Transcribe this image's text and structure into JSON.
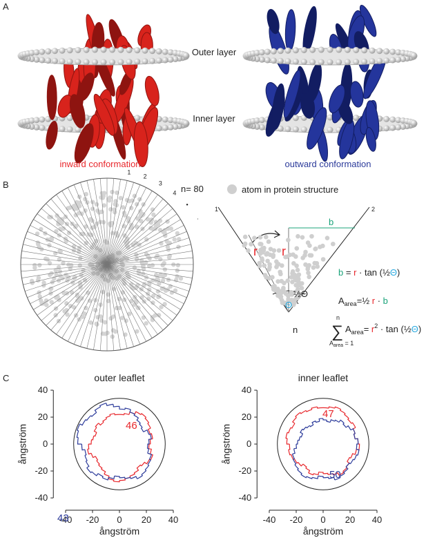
{
  "panel_a": {
    "label": "A",
    "outer_layer": "Outer layer",
    "inner_layer": "Inner layer",
    "inward": "inward conformation",
    "outward": "outward conformation"
  },
  "panel_b": {
    "label": "B",
    "sector_labels": [
      "1",
      "2",
      "3",
      "4",
      "•",
      "·"
    ],
    "n_sectors": {
      "value": 80,
      "label": "n= 80"
    },
    "legend": "atom in protein structure",
    "wedge": {
      "edge_1": "1",
      "edge_2": "2",
      "b": "b",
      "r_left": "r",
      "r_right": "r",
      "half_theta": "½Θ",
      "theta": "Θ",
      "apex": "n"
    },
    "eq1": [
      "b",
      " = ",
      "r",
      " · tan (½",
      "Θ",
      ")"
    ],
    "eq2": [
      "A",
      "area",
      "=½ ",
      "r",
      " · ",
      "b"
    ],
    "eq3": {
      "sum": "∑",
      "upper": "n",
      "lower": [
        "A",
        "area",
        " = 1"
      ],
      "body": [
        "A",
        "area",
        "= ",
        "r",
        "2",
        " · tan (½",
        "Θ",
        ")"
      ]
    }
  },
  "panel_c": {
    "label": "C"
  },
  "chart_data": [
    {
      "type": "polar-step",
      "title": "outer leaflet",
      "xlabel": "ångström",
      "ylabel": "ångström",
      "xlim": [
        -45,
        45
      ],
      "ylim": [
        -45,
        45
      ],
      "xticks": [
        -40,
        -20,
        0,
        20,
        40
      ],
      "yticks": [
        -40,
        -20,
        0,
        20,
        40
      ],
      "boundary_radius": 34,
      "series": [
        {
          "name": "inward",
          "color": "#e8262b",
          "values": [
            22,
            23,
            25,
            27,
            28,
            27,
            26,
            24,
            25,
            23,
            22,
            24,
            26,
            25,
            23,
            22,
            24,
            25,
            26,
            27,
            28,
            27,
            25,
            23,
            22,
            21,
            20,
            22,
            24,
            23,
            21,
            20,
            19,
            21,
            22,
            20,
            21,
            22,
            23,
            22
          ]
        },
        {
          "name": "outward",
          "color": "#2b3a9a",
          "values": [
            26,
            27,
            25,
            24,
            22,
            21,
            20,
            23,
            24,
            22,
            21,
            22,
            25,
            26,
            27,
            28,
            29,
            27,
            26,
            25,
            24,
            26,
            28,
            27,
            29,
            30,
            28,
            27,
            26,
            28,
            31,
            32,
            33,
            31,
            30,
            29,
            31,
            32,
            30,
            28
          ]
        }
      ],
      "annotations": [
        {
          "text": "46",
          "color": "#e8262b"
        },
        {
          "text": "43",
          "color": "#2b3a9a"
        }
      ]
    },
    {
      "type": "polar-step",
      "title": "inner leaflet",
      "xlabel": "ångström",
      "ylabel": "ångström",
      "xlim": [
        -45,
        45
      ],
      "ylim": [
        -45,
        45
      ],
      "xticks": [
        -40,
        -20,
        0,
        20,
        40
      ],
      "yticks": [
        -40,
        -20,
        0,
        20,
        40
      ],
      "boundary_radius": 34,
      "series": [
        {
          "name": "inward",
          "color": "#e8262b",
          "values": [
            27,
            28,
            29,
            28,
            27,
            26,
            27,
            25,
            24,
            26,
            27,
            25,
            23,
            22,
            24,
            25,
            26,
            24,
            23,
            22,
            21,
            23,
            24,
            22,
            21,
            23,
            24,
            25,
            26,
            25,
            27,
            28,
            27,
            26,
            28,
            29,
            28,
            27,
            28,
            27
          ]
        },
        {
          "name": "outward",
          "color": "#2b3a9a",
          "values": [
            18,
            17,
            19,
            20,
            22,
            21,
            23,
            25,
            24,
            26,
            25,
            27,
            26,
            25,
            24,
            26,
            27,
            28,
            26,
            25,
            24,
            26,
            27,
            28,
            27,
            26,
            25,
            24,
            22,
            20,
            19,
            18,
            17,
            19,
            18,
            17,
            16,
            18,
            17,
            19
          ]
        }
      ],
      "annotations": [
        {
          "text": "47",
          "color": "#e8262b"
        },
        {
          "text": "50",
          "color": "#2b3a9a"
        }
      ]
    }
  ]
}
